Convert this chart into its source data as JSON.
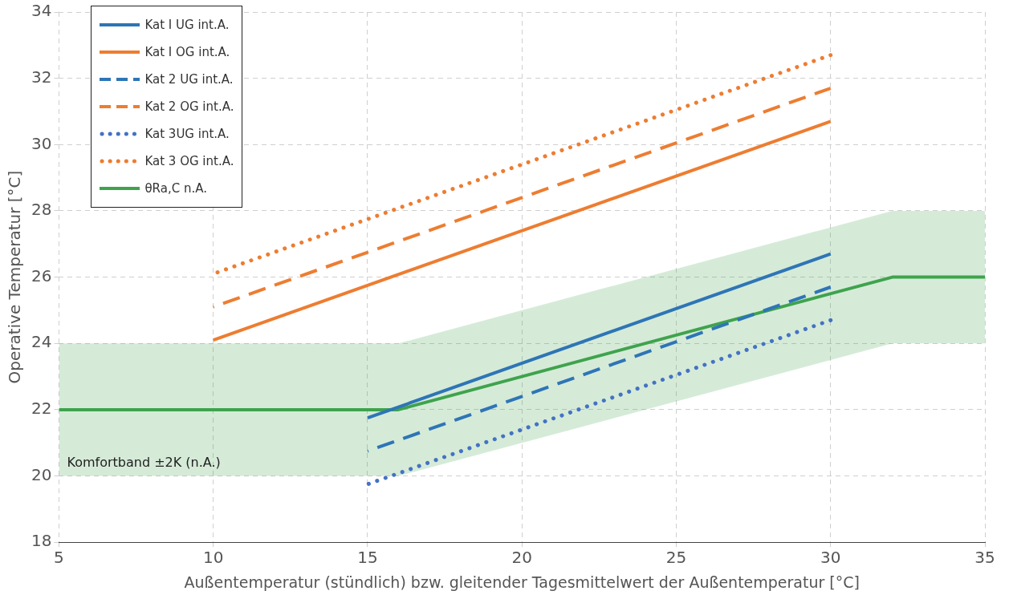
{
  "chart_data": {
    "type": "line",
    "xlabel": "Außentemperatur (stündlich) bzw. gleitender Tagesmittelwert der Außentemperatur [°C]",
    "ylabel": "Operative Temperatur [°C]",
    "xlim": [
      5,
      35
    ],
    "xticks": [
      5,
      10,
      15,
      20,
      25,
      30,
      35
    ],
    "ylim": [
      18,
      34
    ],
    "yticks": [
      18,
      20,
      22,
      24,
      26,
      28,
      30,
      32,
      34
    ],
    "grid": true,
    "legend": "top left",
    "marker": "none",
    "series": [
      {
        "name": "Kat I UG int.A.",
        "color": "#2e75b6",
        "line_style": "solid",
        "x": [
          15,
          30
        ],
        "values": [
          21.75,
          26.7
        ]
      },
      {
        "name": "Kat I OG int.A.",
        "color": "#ed7d31",
        "line_style": "solid",
        "x": [
          10,
          30
        ],
        "values": [
          24.1,
          30.7
        ]
      },
      {
        "name": "Kat 2 UG int.A.",
        "color": "#2e75b6",
        "line_style": "dashed",
        "x": [
          15,
          30
        ],
        "values": [
          20.75,
          25.7
        ]
      },
      {
        "name": "Kat 2 OG int.A.",
        "color": "#ed7d31",
        "line_style": "dashed",
        "x": [
          10,
          30
        ],
        "values": [
          25.1,
          31.7
        ]
      },
      {
        "name": "Kat 3UG int.A.",
        "color": "#4472c4",
        "line_style": "dotted",
        "x": [
          15,
          30
        ],
        "values": [
          19.75,
          24.7
        ]
      },
      {
        "name": "Kat 3 OG int.A.",
        "color": "#ed7d31",
        "line_style": "dotted",
        "x": [
          10,
          30
        ],
        "values": [
          26.1,
          32.7
        ]
      },
      {
        "name": "θRa,C n.A.",
        "color": "#3fa34d",
        "line_style": "solid",
        "x": [
          5,
          15.5,
          16,
          32,
          32.5,
          35
        ],
        "values": [
          22,
          22,
          22,
          26,
          26,
          26
        ],
        "lower": [
          20,
          20,
          20,
          24,
          24,
          24
        ],
        "upper": [
          24,
          24,
          24,
          28,
          28,
          28
        ]
      }
    ],
    "annotations": [
      "Komfortband ±2K (n.A.)"
    ]
  }
}
